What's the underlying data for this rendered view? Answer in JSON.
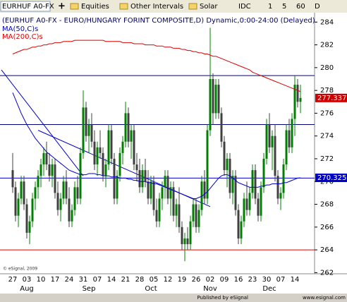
{
  "toolbar": {
    "symbol": "EURHUF A0-FX",
    "items": [
      "Equities",
      "Other Intervals",
      "Solar",
      "IDC",
      "1",
      "5",
      "60",
      "D"
    ]
  },
  "chart_data": {
    "type": "candlestick",
    "title": "(EURHUF A0-FX - EURO/HUNGARY FORINT COMPOSITE,D) Dynamic,0:00-24:00 (Delayed)",
    "watermark": "© eSignal, 2009",
    "categories": [
      "27",
      null,
      null,
      null,
      null,
      "03",
      null,
      null,
      null,
      null,
      "10",
      null,
      null,
      null,
      null,
      "17",
      null,
      null,
      null,
      null,
      "24",
      null,
      null,
      null,
      null,
      "31",
      null,
      null,
      null,
      null,
      "07",
      null,
      null,
      null,
      null,
      "14",
      null,
      null,
      null,
      null,
      "21",
      null,
      null,
      null,
      null,
      "28",
      null,
      null,
      null,
      null,
      "05",
      null,
      null,
      null,
      null,
      "12",
      null,
      null,
      null,
      null,
      "19",
      null,
      null,
      null,
      null,
      "26",
      null,
      null,
      null,
      null,
      "02",
      null,
      null,
      null,
      null,
      "09",
      null,
      null,
      null,
      null,
      "16",
      null,
      null,
      null,
      null,
      "23",
      null,
      null,
      null,
      null,
      "30",
      null,
      null,
      null,
      null,
      "07",
      null,
      null,
      null,
      null,
      "14",
      null,
      null
    ],
    "months": [
      {
        "label": "Aug",
        "at": 5
      },
      {
        "label": "Sep",
        "at": 27
      },
      {
        "label": "Oct",
        "at": 49
      },
      {
        "label": "Nov",
        "at": 70
      },
      {
        "label": "Dec",
        "at": 91
      }
    ],
    "up_color": "#008000",
    "down_color": "#404040",
    "ohlc": [
      [
        271,
        272.5,
        269,
        269.5
      ],
      [
        269.5,
        270,
        266.5,
        267
      ],
      [
        267,
        269,
        266,
        268.5
      ],
      [
        268.5,
        270.5,
        268,
        270
      ],
      [
        270,
        270.5,
        267.5,
        268
      ],
      [
        268,
        268.5,
        265,
        265.5
      ],
      [
        265.5,
        267,
        264.5,
        266.5
      ],
      [
        266.5,
        269,
        266,
        268.5
      ],
      [
        268.5,
        270,
        267.5,
        269.5
      ],
      [
        269.5,
        271,
        268.5,
        270.5
      ],
      [
        270.5,
        272,
        269.5,
        271.5
      ],
      [
        271.5,
        273,
        270.5,
        272.5
      ],
      [
        272.5,
        273.5,
        271,
        271.5
      ],
      [
        271.5,
        272.5,
        270,
        270.5
      ],
      [
        270.5,
        272,
        269.5,
        271.5
      ],
      [
        271.5,
        272,
        268.5,
        269
      ],
      [
        269,
        270,
        267,
        267.5
      ],
      [
        267.5,
        269,
        266.5,
        268.5
      ],
      [
        268.5,
        270.5,
        268,
        270
      ],
      [
        270,
        271,
        268,
        268.5
      ],
      [
        268.5,
        269.5,
        266,
        266.5
      ],
      [
        266.5,
        268,
        266,
        267.5
      ],
      [
        267.5,
        270,
        267,
        269.5
      ],
      [
        269.5,
        270.5,
        268,
        268.5
      ],
      [
        268.5,
        273,
        268,
        272.5
      ],
      [
        272.5,
        278,
        272,
        276.5
      ],
      [
        276.5,
        277,
        273.5,
        274
      ],
      [
        274,
        275.5,
        272.5,
        275
      ],
      [
        275,
        276,
        273,
        273.5
      ],
      [
        273.5,
        274.5,
        271,
        271.5
      ],
      [
        271.5,
        273.5,
        270.5,
        273
      ],
      [
        273,
        274.5,
        272,
        272.5
      ],
      [
        272.5,
        273,
        270,
        270.5
      ],
      [
        270.5,
        272,
        269.5,
        271.5
      ],
      [
        271.5,
        275,
        271,
        274.5
      ],
      [
        274.5,
        275,
        271.5,
        272
      ],
      [
        272,
        272.5,
        268,
        268.5
      ],
      [
        268.5,
        271,
        268,
        270.5
      ],
      [
        270.5,
        273,
        270,
        272.5
      ],
      [
        272.5,
        274,
        271.5,
        273.5
      ],
      [
        273.5,
        277,
        273,
        276
      ],
      [
        276,
        276.5,
        273,
        273.5
      ],
      [
        273.5,
        275,
        272,
        274.5
      ],
      [
        274.5,
        275,
        271,
        271.5
      ],
      [
        271.5,
        272.5,
        270,
        271
      ],
      [
        271,
        272,
        269,
        269.5
      ],
      [
        269.5,
        271.5,
        269,
        271
      ],
      [
        271,
        272,
        269.5,
        270
      ],
      [
        270,
        271,
        268,
        268.5
      ],
      [
        268.5,
        270.5,
        268,
        270
      ],
      [
        270,
        270.5,
        267,
        267.5
      ],
      [
        267.5,
        268.5,
        266,
        266.5
      ],
      [
        266.5,
        269,
        266,
        268.5
      ],
      [
        268.5,
        270,
        267.5,
        269.5
      ],
      [
        269.5,
        271,
        268.5,
        270.5
      ],
      [
        270.5,
        271,
        268,
        268.5
      ],
      [
        268.5,
        270,
        267,
        269.5
      ],
      [
        269.5,
        270,
        266.5,
        267
      ],
      [
        267,
        268.5,
        266,
        268
      ],
      [
        268,
        269.5,
        265.5,
        266
      ],
      [
        266,
        266.5,
        264,
        264.5
      ],
      [
        264.5,
        265.5,
        263,
        265
      ],
      [
        265,
        266,
        264,
        264.5
      ],
      [
        264.5,
        267,
        264,
        266.5
      ],
      [
        266.5,
        268.5,
        266,
        268
      ],
      [
        268,
        268.5,
        265.5,
        266
      ],
      [
        266,
        268,
        265.5,
        267.5
      ],
      [
        267.5,
        270.5,
        267,
        270
      ],
      [
        270,
        271,
        268,
        268.5
      ],
      [
        268.5,
        275,
        268,
        274.5
      ],
      [
        274.5,
        283.5,
        274,
        279
      ],
      [
        279,
        279.5,
        275,
        276
      ],
      [
        276,
        279,
        275.5,
        278.5
      ],
      [
        278.5,
        279,
        275.5,
        276
      ],
      [
        276,
        276.5,
        273,
        273.5
      ],
      [
        273.5,
        274,
        270.5,
        271
      ],
      [
        271,
        272.5,
        269.5,
        272
      ],
      [
        272,
        272.5,
        268.5,
        269
      ],
      [
        269,
        271,
        268,
        270.5
      ],
      [
        270.5,
        271,
        267,
        267.5
      ],
      [
        267.5,
        268,
        264.5,
        265
      ],
      [
        265,
        267,
        264.5,
        266.5
      ],
      [
        266.5,
        269,
        266,
        268.5
      ],
      [
        268.5,
        270,
        267,
        267.5
      ],
      [
        267.5,
        269.5,
        267,
        269
      ],
      [
        269,
        271.5,
        268.5,
        271
      ],
      [
        271,
        271.5,
        268,
        268.5
      ],
      [
        268.5,
        269,
        266.5,
        267
      ],
      [
        267,
        270,
        266.5,
        269.5
      ],
      [
        269.5,
        272.5,
        269,
        272
      ],
      [
        272,
        275.5,
        271.5,
        275
      ],
      [
        275,
        276,
        272.5,
        273
      ],
      [
        273,
        274.5,
        271,
        274
      ],
      [
        274,
        275,
        270,
        270.5
      ],
      [
        270.5,
        271,
        268,
        268.5
      ],
      [
        268.5,
        269.5,
        267.5,
        269
      ],
      [
        269,
        272,
        268.5,
        271.5
      ],
      [
        271.5,
        275,
        271,
        274.5
      ],
      [
        274.5,
        275.5,
        272.5,
        273
      ],
      [
        273,
        276,
        272.5,
        275.5
      ],
      [
        275.5,
        279.3,
        274,
        278.5
      ],
      [
        278.5,
        279,
        276.5,
        277
      ],
      [
        277,
        278.5,
        276,
        277.337
      ]
    ],
    "series": [
      {
        "name": "MA(50,C)s",
        "color": "#0000cc",
        "values": [
          277.8,
          277.2,
          276.6,
          276.0,
          275.5,
          275.0,
          274.6,
          274.2,
          273.8,
          273.5,
          273.2,
          272.9,
          272.6,
          272.4,
          272.2,
          272.0,
          271.8,
          271.6,
          271.4,
          271.2,
          271.0,
          270.9,
          270.8,
          270.7,
          270.6,
          270.6,
          270.6,
          270.7,
          270.7,
          270.7,
          270.6,
          270.6,
          270.5,
          270.5,
          270.5,
          270.4,
          270.4,
          270.4,
          270.3,
          270.3,
          270.3,
          270.2,
          270.2,
          270.1,
          270.1,
          270.0,
          270.0,
          270.0,
          269.9,
          269.9,
          269.8,
          269.8,
          269.7,
          269.6,
          269.5,
          269.4,
          269.3,
          269.2,
          269.1,
          269.0,
          268.9,
          268.8,
          268.7,
          268.6,
          268.5,
          268.5,
          268.6,
          268.7,
          268.9,
          269.1,
          269.4,
          269.7,
          270.0,
          270.3,
          270.5,
          270.6,
          270.6,
          270.5,
          270.3,
          270.1,
          269.9,
          269.8,
          269.7,
          269.6,
          269.5,
          269.5,
          269.5,
          269.5,
          269.6,
          269.6,
          269.7,
          269.7,
          269.8,
          269.8,
          269.8,
          269.8,
          269.9,
          269.9,
          270.0,
          270.1,
          270.2,
          270.3,
          270.325
        ]
      },
      {
        "name": "MA(200,C)s",
        "color": "#dd0000",
        "values": [
          281.2,
          281.3,
          281.4,
          281.5,
          281.6,
          281.6,
          281.7,
          281.8,
          281.8,
          281.9,
          281.9,
          282.0,
          282.0,
          282.1,
          282.1,
          282.2,
          282.2,
          282.2,
          282.3,
          282.3,
          282.3,
          282.3,
          282.4,
          282.4,
          282.4,
          282.4,
          282.4,
          282.4,
          282.4,
          282.4,
          282.4,
          282.4,
          282.4,
          282.3,
          282.3,
          282.3,
          282.3,
          282.3,
          282.3,
          282.2,
          282.2,
          282.2,
          282.2,
          282.1,
          282.1,
          282.1,
          282.1,
          282.0,
          282.0,
          282.0,
          282.0,
          281.9,
          281.9,
          281.9,
          281.8,
          281.8,
          281.8,
          281.7,
          281.7,
          281.7,
          281.6,
          281.6,
          281.5,
          281.5,
          281.4,
          281.4,
          281.3,
          281.3,
          281.2,
          281.2,
          281.1,
          281.0,
          281.0,
          280.9,
          280.8,
          280.7,
          280.6,
          280.5,
          280.4,
          280.3,
          280.2,
          280.1,
          280.0,
          279.9,
          279.8,
          279.6,
          279.5,
          279.4,
          279.3,
          279.2,
          279.1,
          279.0,
          278.9,
          278.8,
          278.7,
          278.6,
          278.5,
          278.4,
          278.3,
          278.2,
          278.1,
          278.0,
          277.9
        ]
      }
    ],
    "hlines": [
      {
        "value": 279.3,
        "color": "#000080"
      },
      {
        "value": 275,
        "color": "#000080"
      },
      {
        "value": 270.3,
        "color": "#0000cc"
      },
      {
        "value": 264,
        "color": "#dd0000"
      }
    ],
    "trendlines": [
      {
        "color": "#0000cc",
        "points": [
          [
            -4,
            279.8
          ],
          [
            25,
            270.5
          ]
        ]
      },
      {
        "color": "#0000cc",
        "points": [
          [
            9,
            274.5
          ],
          [
            70,
            267.8
          ]
        ]
      }
    ],
    "price_tags": [
      {
        "value": 277.337,
        "color": "#cc0000"
      },
      {
        "value": 270.325,
        "color": "#0000cc"
      }
    ],
    "ylim": [
      261.9,
      284.7
    ],
    "yticks": [
      262,
      264,
      266,
      268,
      270,
      272,
      274,
      276,
      278,
      280,
      282,
      284
    ]
  },
  "footer": {
    "left": "Published by eSignal",
    "right": "www.esignal.com"
  }
}
